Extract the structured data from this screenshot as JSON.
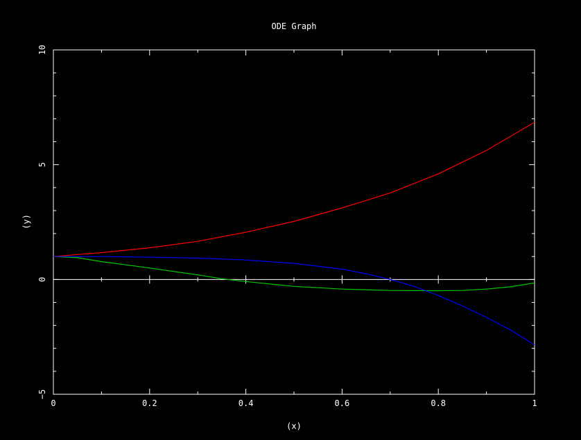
{
  "chart_data": {
    "type": "line",
    "title": "ODE Graph",
    "xlabel": "(x)",
    "ylabel": "(y)",
    "xlim": [
      0,
      1
    ],
    "ylim": [
      -5,
      10
    ],
    "x_ticks": [
      0,
      0.2,
      0.4,
      0.6,
      0.8,
      1
    ],
    "x_tick_labels": [
      "0",
      "0.2",
      "0.4",
      "0.6",
      "0.8",
      "1"
    ],
    "y_ticks": [
      -5,
      0,
      5,
      10
    ],
    "y_tick_labels": [
      "−5",
      "0",
      "5",
      "10"
    ],
    "grid": false,
    "background_color": "#000000",
    "axis_color": "#ffffff",
    "zero_line": true,
    "series": [
      {
        "color": "#ff0000",
        "x": [
          0,
          0.1,
          0.2,
          0.3,
          0.4,
          0.5,
          0.6,
          0.7,
          0.8,
          0.9,
          1
        ],
        "y": [
          1.0,
          1.17,
          1.38,
          1.66,
          2.06,
          2.53,
          3.12,
          3.77,
          4.6,
          5.62,
          6.85
        ]
      },
      {
        "color": "#00cc00",
        "x": [
          0,
          0.05,
          0.1,
          0.2,
          0.3,
          0.35,
          0.4,
          0.5,
          0.6,
          0.7,
          0.8,
          0.85,
          0.9,
          0.95,
          1
        ],
        "y": [
          1.0,
          0.95,
          0.78,
          0.5,
          0.2,
          0.03,
          -0.09,
          -0.3,
          -0.42,
          -0.48,
          -0.49,
          -0.48,
          -0.42,
          -0.32,
          -0.15
        ]
      },
      {
        "color": "#0000ff",
        "x": [
          0,
          0.1,
          0.2,
          0.3,
          0.4,
          0.5,
          0.6,
          0.65,
          0.7,
          0.75,
          0.8,
          0.85,
          0.9,
          0.95,
          1
        ],
        "y": [
          1.0,
          1.0,
          0.97,
          0.93,
          0.85,
          0.7,
          0.45,
          0.25,
          0.0,
          -0.3,
          -0.7,
          -1.15,
          -1.65,
          -2.2,
          -2.85
        ]
      }
    ]
  }
}
